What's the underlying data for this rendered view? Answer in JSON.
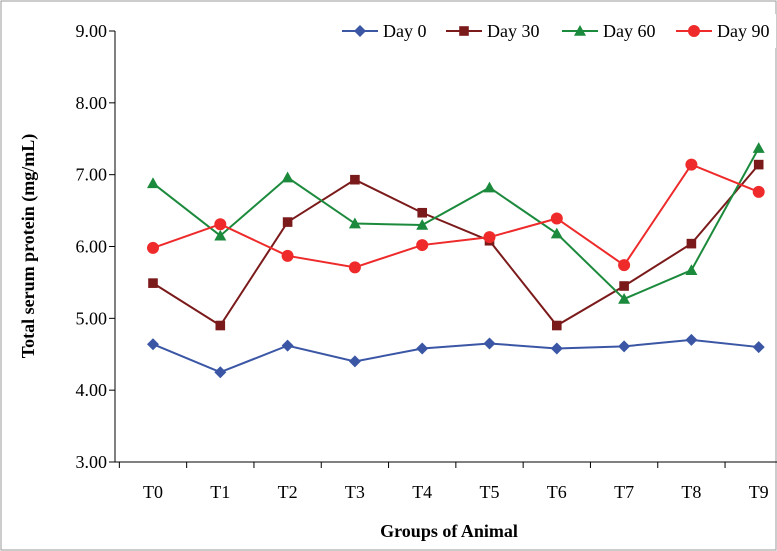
{
  "chart_data": {
    "type": "line",
    "title": "",
    "xlabel": "Groups of Animal",
    "ylabel": "Total serum protein (mg/mL)",
    "categories": [
      "T0",
      "T1",
      "T2",
      "T3",
      "T4",
      "T5",
      "T6",
      "T7",
      "T8",
      "T9"
    ],
    "ylim": [
      3.0,
      9.0
    ],
    "yticks": [
      "3.00",
      "4.00",
      "5.00",
      "6.00",
      "7.00",
      "8.00",
      "9.00"
    ],
    "grid": false,
    "legend_position": "top-right",
    "series": [
      {
        "name": "Day 0",
        "color": "#3a56a5",
        "marker": "diamond",
        "values": [
          4.64,
          4.25,
          4.62,
          4.4,
          4.58,
          4.65,
          4.58,
          4.61,
          4.7,
          4.6
        ]
      },
      {
        "name": "Day 30",
        "color": "#7b1a1a",
        "marker": "square",
        "values": [
          5.49,
          4.9,
          6.34,
          6.93,
          6.47,
          6.08,
          4.9,
          5.45,
          6.04,
          7.14
        ]
      },
      {
        "name": "Day 60",
        "color": "#1c8a3c",
        "marker": "triangle",
        "values": [
          6.88,
          6.15,
          6.96,
          6.32,
          6.3,
          6.82,
          6.18,
          5.27,
          5.67,
          7.37
        ]
      },
      {
        "name": "Day 90",
        "color": "#ee2a2a",
        "marker": "circle",
        "values": [
          5.98,
          6.31,
          5.87,
          5.71,
          6.02,
          6.13,
          6.39,
          5.74,
          7.14,
          6.76
        ]
      }
    ]
  }
}
